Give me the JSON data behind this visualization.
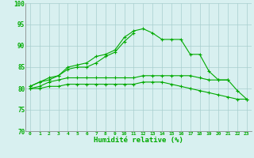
{
  "x": [
    0,
    1,
    2,
    3,
    4,
    5,
    6,
    7,
    8,
    9,
    10,
    11,
    12,
    13,
    14,
    15,
    16,
    17,
    18,
    19,
    20,
    21,
    22,
    23
  ],
  "line1": [
    80.5,
    81.5,
    82.5,
    83,
    85,
    85.5,
    86,
    87.5,
    88,
    89,
    92,
    93.5,
    94,
    93,
    91.5,
    91.5,
    91.5,
    88,
    88,
    84,
    82,
    82,
    79.5,
    77.5
  ],
  "line2": [
    80.5,
    81.5,
    82,
    83,
    84.5,
    85,
    85,
    86,
    87.5,
    88.5,
    91,
    93,
    null,
    null,
    null,
    null,
    null,
    null,
    null,
    null,
    null,
    null,
    null,
    null
  ],
  "line3": [
    80,
    80.5,
    81.5,
    82,
    82.5,
    82.5,
    82.5,
    82.5,
    82.5,
    82.5,
    82.5,
    82.5,
    83,
    83,
    83,
    83,
    83,
    83,
    82.5,
    82,
    82,
    82,
    null,
    null
  ],
  "line4": [
    80,
    80,
    80.5,
    80.5,
    81,
    81,
    81,
    81,
    81,
    81,
    81,
    81,
    81.5,
    81.5,
    81.5,
    81,
    80.5,
    80,
    79.5,
    79,
    78.5,
    78,
    77.5,
    77.5
  ],
  "bg_color": "#d8f0f0",
  "grid_color": "#a8cece",
  "line_color": "#00aa00",
  "tick_color": "#00aa00",
  "xlabel": "Humidité relative (%)",
  "xlim": [
    -0.5,
    23.5
  ],
  "ylim": [
    70,
    100
  ],
  "yticks": [
    70,
    75,
    80,
    85,
    90,
    95,
    100
  ],
  "xticks": [
    0,
    1,
    2,
    3,
    4,
    5,
    6,
    7,
    8,
    9,
    10,
    11,
    12,
    13,
    14,
    15,
    16,
    17,
    18,
    19,
    20,
    21,
    22,
    23
  ]
}
